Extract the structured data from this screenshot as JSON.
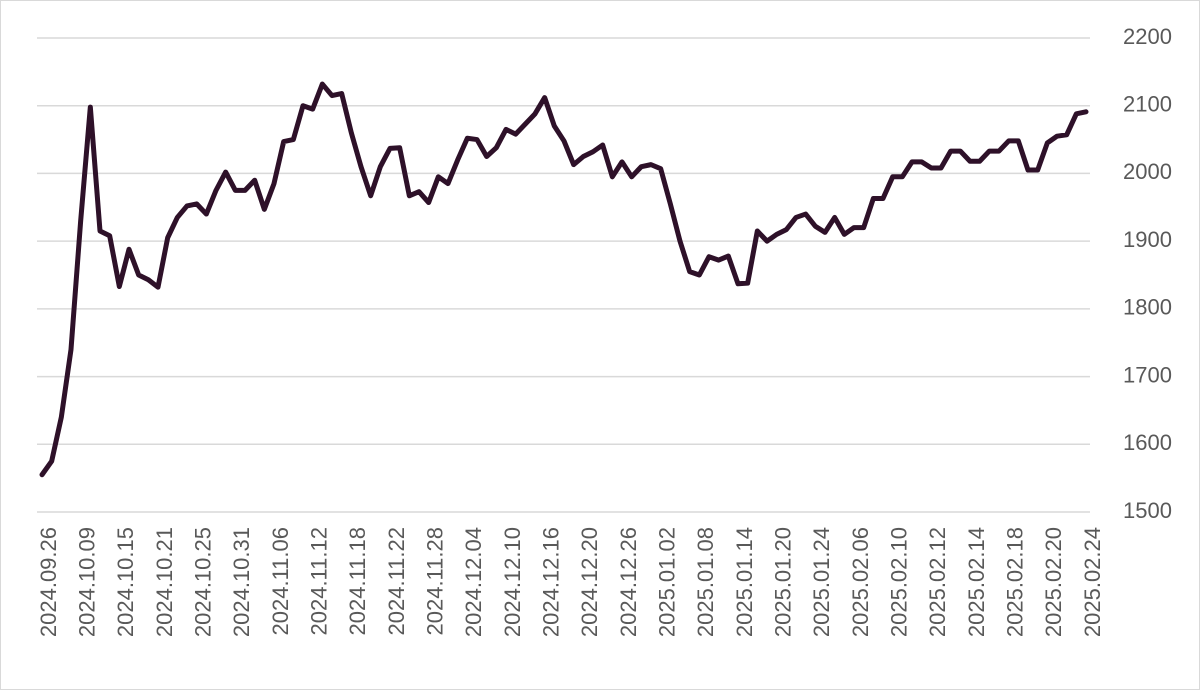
{
  "chart_data": {
    "type": "line",
    "categories": [
      "2024.09.26",
      null,
      null,
      null,
      "2024.10.09",
      null,
      null,
      null,
      "2024.10.15",
      null,
      null,
      null,
      "2024.10.21",
      null,
      null,
      null,
      "2024.10.25",
      null,
      null,
      null,
      "2024.10.31",
      null,
      null,
      null,
      "2024.11.06",
      null,
      null,
      null,
      "2024.11.12",
      null,
      null,
      null,
      "2024.11.18",
      null,
      null,
      null,
      "2024.11.22",
      null,
      null,
      null,
      "2024.11.28",
      null,
      null,
      null,
      "2024.12.04",
      null,
      null,
      null,
      "2024.12.10",
      null,
      null,
      null,
      "2024.12.16",
      null,
      null,
      null,
      "2024.12.20",
      null,
      null,
      null,
      "2024.12.26",
      null,
      null,
      null,
      "2025.01.02",
      null,
      null,
      null,
      "2025.01.08",
      null,
      null,
      null,
      "2025.01.14",
      null,
      null,
      null,
      "2025.01.20",
      null,
      null,
      null,
      "2025.01.24",
      null,
      null,
      null,
      "2025.02.06",
      null,
      null,
      null,
      "2025.02.10",
      null,
      null,
      null,
      "2025.02.12",
      null,
      null,
      null,
      "2025.02.14",
      null,
      null,
      null,
      "2025.02.18",
      null,
      null,
      null,
      "2025.02.20",
      null,
      null,
      null,
      "2025.02.24"
    ],
    "series": [
      {
        "color": "#2e1129",
        "values": [
          1555,
          1575,
          1640,
          1740,
          1930,
          2098,
          1915,
          1908,
          1833,
          1888,
          1850,
          1843,
          1832,
          1905,
          1935,
          1952,
          1955,
          1940,
          1975,
          2002,
          1975,
          1975,
          1990,
          1947,
          1985,
          2047,
          2050,
          2100,
          2095,
          2132,
          2115,
          2118,
          2060,
          2010,
          1967,
          2010,
          2037,
          2038,
          1967,
          1973,
          1957,
          1995,
          1985,
          2020,
          2052,
          2050,
          2025,
          2038,
          2065,
          2058,
          2073,
          2088,
          2112,
          2070,
          2048,
          2013,
          2025,
          2032,
          2042,
          1995,
          2017,
          1995,
          2010,
          2013,
          2007,
          1955,
          1900,
          1855,
          1850,
          1877,
          1872,
          1878,
          1837,
          1838,
          1915,
          1900,
          1910,
          1917,
          1935,
          1940,
          1922,
          1913,
          1935,
          1910,
          1920,
          1920,
          1963,
          1963,
          1995,
          1995,
          2017,
          2017,
          2008,
          2008,
          2033,
          2033,
          2018,
          2018,
          2033,
          2033,
          2048,
          2048,
          2005,
          2005,
          2045,
          2055,
          2057,
          2088,
          2091
        ]
      }
    ],
    "ylim": [
      1500,
      2200
    ],
    "yticks": [
      1500,
      1600,
      1700,
      1800,
      1900,
      2000,
      2100,
      2200
    ],
    "grid": true,
    "y_axis_side": "right"
  }
}
